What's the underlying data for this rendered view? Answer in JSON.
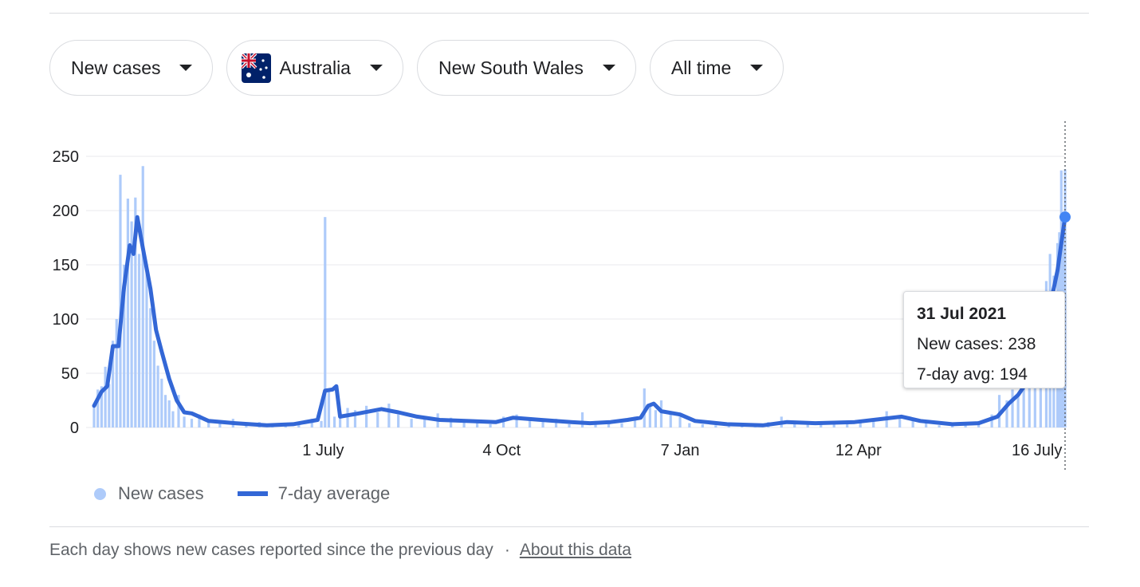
{
  "filters": {
    "metric": "New cases",
    "country": "Australia",
    "region": "New South Wales",
    "period": "All time"
  },
  "colors": {
    "bars": "#aecbfa",
    "avg_line": "#3367d6",
    "grid": "#e8eaed"
  },
  "chart_data": {
    "type": "bar",
    "title": "",
    "xlabel": "",
    "ylabel": "",
    "ylim": [
      0,
      250
    ],
    "y_ticks": [
      0,
      50,
      100,
      150,
      200,
      250
    ],
    "x_range": [
      "2020-03-01",
      "2021-07-31"
    ],
    "x_ticks": [
      {
        "date": "2020-07-01",
        "label": "1 July"
      },
      {
        "date": "2020-10-04",
        "label": "4 Oct"
      },
      {
        "date": "2021-01-07",
        "label": "7 Jan"
      },
      {
        "date": "2021-04-12",
        "label": "12 Apr"
      },
      {
        "date": "2021-07-16",
        "label": "16 July"
      }
    ],
    "grid": true,
    "legend_position": "bottom-left",
    "series": [
      {
        "name": "New cases",
        "kind": "bar",
        "points": [
          [
            "2020-03-01",
            20
          ],
          [
            "2020-03-03",
            35
          ],
          [
            "2020-03-05",
            38
          ],
          [
            "2020-03-07",
            56
          ],
          [
            "2020-03-09",
            40
          ],
          [
            "2020-03-11",
            80
          ],
          [
            "2020-03-13",
            100
          ],
          [
            "2020-03-15",
            233
          ],
          [
            "2020-03-17",
            150
          ],
          [
            "2020-03-19",
            211
          ],
          [
            "2020-03-21",
            190
          ],
          [
            "2020-03-23",
            212
          ],
          [
            "2020-03-25",
            160
          ],
          [
            "2020-03-27",
            241
          ],
          [
            "2020-03-29",
            150
          ],
          [
            "2020-03-31",
            110
          ],
          [
            "2020-04-02",
            80
          ],
          [
            "2020-04-04",
            57
          ],
          [
            "2020-04-06",
            45
          ],
          [
            "2020-04-08",
            30
          ],
          [
            "2020-04-10",
            25
          ],
          [
            "2020-04-12",
            15
          ],
          [
            "2020-04-15",
            30
          ],
          [
            "2020-04-18",
            10
          ],
          [
            "2020-04-22",
            8
          ],
          [
            "2020-04-26",
            12
          ],
          [
            "2020-05-01",
            6
          ],
          [
            "2020-05-07",
            4
          ],
          [
            "2020-05-14",
            8
          ],
          [
            "2020-05-21",
            3
          ],
          [
            "2020-05-28",
            5
          ],
          [
            "2020-06-04",
            2
          ],
          [
            "2020-06-11",
            4
          ],
          [
            "2020-06-18",
            3
          ],
          [
            "2020-06-25",
            8
          ],
          [
            "2020-06-30",
            6
          ],
          [
            "2020-07-02",
            194
          ],
          [
            "2020-07-04",
            36
          ],
          [
            "2020-07-07",
            10
          ],
          [
            "2020-07-10",
            14
          ],
          [
            "2020-07-14",
            18
          ],
          [
            "2020-07-18",
            16
          ],
          [
            "2020-07-24",
            20
          ],
          [
            "2020-07-30",
            14
          ],
          [
            "2020-08-05",
            22
          ],
          [
            "2020-08-10",
            12
          ],
          [
            "2020-08-17",
            8
          ],
          [
            "2020-08-24",
            10
          ],
          [
            "2020-08-31",
            13
          ],
          [
            "2020-09-07",
            9
          ],
          [
            "2020-09-14",
            6
          ],
          [
            "2020-09-21",
            4
          ],
          [
            "2020-09-28",
            3
          ],
          [
            "2020-10-05",
            10
          ],
          [
            "2020-10-12",
            12
          ],
          [
            "2020-10-19",
            8
          ],
          [
            "2020-10-26",
            6
          ],
          [
            "2020-11-02",
            8
          ],
          [
            "2020-11-09",
            3
          ],
          [
            "2020-11-16",
            14
          ],
          [
            "2020-11-23",
            6
          ],
          [
            "2020-11-30",
            5
          ],
          [
            "2020-12-07",
            4
          ],
          [
            "2020-12-14",
            10
          ],
          [
            "2020-12-19",
            36
          ],
          [
            "2020-12-22",
            20
          ],
          [
            "2020-12-25",
            16
          ],
          [
            "2020-12-28",
            25
          ],
          [
            "2021-01-02",
            12
          ],
          [
            "2021-01-07",
            10
          ],
          [
            "2021-01-12",
            4
          ],
          [
            "2021-01-19",
            3
          ],
          [
            "2021-01-26",
            2
          ],
          [
            "2021-02-02",
            2
          ],
          [
            "2021-02-09",
            3
          ],
          [
            "2021-02-16",
            2
          ],
          [
            "2021-02-23",
            5
          ],
          [
            "2021-03-02",
            10
          ],
          [
            "2021-03-09",
            6
          ],
          [
            "2021-03-16",
            4
          ],
          [
            "2021-03-23",
            5
          ],
          [
            "2021-03-30",
            4
          ],
          [
            "2021-04-06",
            3
          ],
          [
            "2021-04-13",
            6
          ],
          [
            "2021-04-20",
            8
          ],
          [
            "2021-04-27",
            15
          ],
          [
            "2021-05-04",
            10
          ],
          [
            "2021-05-11",
            8
          ],
          [
            "2021-05-18",
            5
          ],
          [
            "2021-05-25",
            2
          ],
          [
            "2021-06-01",
            3
          ],
          [
            "2021-06-08",
            4
          ],
          [
            "2021-06-15",
            6
          ],
          [
            "2021-06-22",
            12
          ],
          [
            "2021-06-26",
            30
          ],
          [
            "2021-06-30",
            25
          ],
          [
            "2021-07-03",
            35
          ],
          [
            "2021-07-06",
            30
          ],
          [
            "2021-07-09",
            40
          ],
          [
            "2021-07-12",
            80
          ],
          [
            "2021-07-15",
            105
          ],
          [
            "2021-07-18",
            100
          ],
          [
            "2021-07-21",
            135
          ],
          [
            "2021-07-23",
            160
          ],
          [
            "2021-07-25",
            140
          ],
          [
            "2021-07-27",
            170
          ],
          [
            "2021-07-28",
            180
          ],
          [
            "2021-07-29",
            237
          ],
          [
            "2021-07-30",
            175
          ],
          [
            "2021-07-31",
            238
          ]
        ]
      },
      {
        "name": "7-day average",
        "kind": "line",
        "points": [
          [
            "2020-03-01",
            20
          ],
          [
            "2020-03-05",
            33
          ],
          [
            "2020-03-08",
            38
          ],
          [
            "2020-03-11",
            75
          ],
          [
            "2020-03-14",
            75
          ],
          [
            "2020-03-17",
            130
          ],
          [
            "2020-03-20",
            168
          ],
          [
            "2020-03-22",
            160
          ],
          [
            "2020-03-24",
            194
          ],
          [
            "2020-03-27",
            165
          ],
          [
            "2020-03-31",
            128
          ],
          [
            "2020-04-03",
            90
          ],
          [
            "2020-04-06",
            70
          ],
          [
            "2020-04-10",
            45
          ],
          [
            "2020-04-14",
            25
          ],
          [
            "2020-04-18",
            14
          ],
          [
            "2020-04-22",
            13
          ],
          [
            "2020-05-01",
            6
          ],
          [
            "2020-05-15",
            4
          ],
          [
            "2020-06-01",
            2
          ],
          [
            "2020-06-15",
            3
          ],
          [
            "2020-06-28",
            7
          ],
          [
            "2020-07-02",
            34
          ],
          [
            "2020-07-06",
            35
          ],
          [
            "2020-07-08",
            38
          ],
          [
            "2020-07-10",
            10
          ],
          [
            "2020-07-20",
            13
          ],
          [
            "2020-08-01",
            17
          ],
          [
            "2020-08-10",
            14
          ],
          [
            "2020-08-20",
            10
          ],
          [
            "2020-09-01",
            7
          ],
          [
            "2020-09-15",
            6
          ],
          [
            "2020-10-01",
            5
          ],
          [
            "2020-10-10",
            9
          ],
          [
            "2020-10-25",
            7
          ],
          [
            "2020-11-10",
            5
          ],
          [
            "2020-11-20",
            4
          ],
          [
            "2020-12-01",
            5
          ],
          [
            "2020-12-10",
            7
          ],
          [
            "2020-12-17",
            9
          ],
          [
            "2020-12-21",
            20
          ],
          [
            "2020-12-24",
            22
          ],
          [
            "2020-12-28",
            15
          ],
          [
            "2021-01-07",
            12
          ],
          [
            "2021-01-15",
            6
          ],
          [
            "2021-02-01",
            3
          ],
          [
            "2021-02-20",
            2
          ],
          [
            "2021-03-05",
            5
          ],
          [
            "2021-03-20",
            4
          ],
          [
            "2021-04-10",
            5
          ],
          [
            "2021-04-25",
            8
          ],
          [
            "2021-05-05",
            10
          ],
          [
            "2021-05-15",
            6
          ],
          [
            "2021-06-01",
            3
          ],
          [
            "2021-06-15",
            4
          ],
          [
            "2021-06-25",
            10
          ],
          [
            "2021-07-01",
            22
          ],
          [
            "2021-07-06",
            30
          ],
          [
            "2021-07-10",
            40
          ],
          [
            "2021-07-15",
            60
          ],
          [
            "2021-07-20",
            90
          ],
          [
            "2021-07-24",
            120
          ],
          [
            "2021-07-27",
            145
          ],
          [
            "2021-07-29",
            170
          ],
          [
            "2021-07-31",
            194
          ]
        ]
      }
    ]
  },
  "tooltip": {
    "date": "31 Jul 2021",
    "new_cases_label": "New cases: 238",
    "avg_label": "7-day avg: 194"
  },
  "legend": {
    "bars_label": "New cases",
    "line_label": "7-day average"
  },
  "footer": {
    "text": "Each day shows new cases reported since the previous day",
    "separator": "·",
    "link": "About this data"
  }
}
